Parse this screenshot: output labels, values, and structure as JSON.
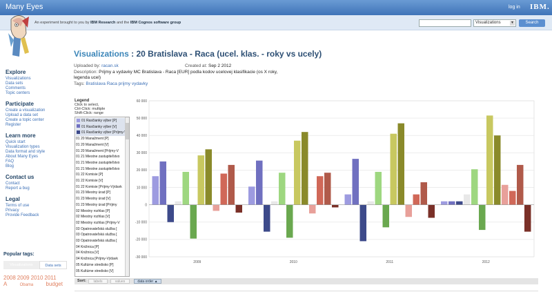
{
  "header": {
    "brand": "Many Eyes",
    "login": "log in",
    "ibm": "IBM.",
    "tagline_prefix": "An experiment brought to you by ",
    "tagline_research": "IBM Research",
    "tagline_mid": " and the ",
    "tagline_cognos": "IBM Cognos software group",
    "search_value": "",
    "search_select": "Visualizations",
    "search_button": "Search"
  },
  "sidebar": {
    "explore": {
      "heading": "Explore",
      "items": [
        "Visualizations",
        "Data sets",
        "Comments",
        "Topic centers"
      ]
    },
    "participate": {
      "heading": "Participate",
      "items": [
        "Create a visualization",
        "Upload a data set",
        "Create a topic center",
        "Register"
      ]
    },
    "learn": {
      "heading": "Learn more",
      "items": [
        "Quick start",
        "Visualization types",
        "Data format and style",
        "About Many Eyes",
        "FAQ",
        "Blog"
      ]
    },
    "contact": {
      "heading": "Contact us",
      "items": [
        "Contact",
        "Report a bug"
      ]
    },
    "legal": {
      "heading": "Legal",
      "items": [
        "Terms of use",
        "Privacy",
        "Provide Feedback"
      ]
    },
    "popular_tags": "Popular tags:",
    "tag_tabs": [
      "Visualizations",
      "Data sets"
    ],
    "tag_cloud": [
      "2008",
      "2009",
      "2010",
      "2011",
      "A",
      "Obama",
      "budget"
    ]
  },
  "page": {
    "title_link": "Visualizations",
    "title_rest": " : 20 Bratislava - Raca (ucel. klas. - roky vs ucely)",
    "uploaded_by_label": "Uploaded by:",
    "uploaded_by": "racan.sk",
    "created_label": "Created at:",
    "created": "Sep 2 2012",
    "description_label": "Description:",
    "description_1": "Prijmy a vydavky MC Bratislava - Raca [EUR] podla kodov ucelovej klasifikacie (os X roky,",
    "description_2": "legenda ucel)",
    "tags_label": "Tags:",
    "tags": "Bratislava Raca prijmy vydavky"
  },
  "legend": {
    "title": "Legend",
    "hint_1": "Click to select,",
    "hint_2": "Ctrl-Click: multiple",
    "hint_3": "Shift-Click: range",
    "items": [
      {
        "label": "01 Rasčianky výber [P]",
        "color": "#9d9be0",
        "selected": true
      },
      {
        "label": "01 Rasčianky výber [V]",
        "color": "#7070c0",
        "selected": true
      },
      {
        "label": "01 Rasčianky výber [Príjmy-V",
        "color": "#3d4a8a",
        "selected": true
      },
      {
        "label": "01 20 Manažment [P]",
        "color": "",
        "selected": false
      },
      {
        "label": "01 20 Manažment [V]",
        "color": "",
        "selected": false
      },
      {
        "label": "01 20 Manažment [Príjmy-V",
        "color": "",
        "selected": false
      },
      {
        "label": "01 21 Miestne zastupiteľstvo",
        "color": "",
        "selected": false
      },
      {
        "label": "01 21 Miestne zastupiteľstvo",
        "color": "",
        "selected": false
      },
      {
        "label": "01 21 Miestne zastupiteľstvo",
        "color": "",
        "selected": false
      },
      {
        "label": "01 22 Komisie [P]",
        "color": "",
        "selected": false
      },
      {
        "label": "01 22 Komisie [V]",
        "color": "",
        "selected": false
      },
      {
        "label": "01 22 Komisie [Príjmy-Výdavk",
        "color": "",
        "selected": false
      },
      {
        "label": "01 23 Miestny úrad [P]",
        "color": "",
        "selected": false
      },
      {
        "label": "01 23 Miestny úrad [V]",
        "color": "",
        "selected": false
      },
      {
        "label": "01 23 Miestny úrad [Príjmy",
        "color": "",
        "selected": false
      },
      {
        "label": "02 Miestny rozhlas [P]",
        "color": "",
        "selected": false
      },
      {
        "label": "02 Miestny rozhlas [V]",
        "color": "",
        "selected": false
      },
      {
        "label": "02 Miestny rozhlas [Príjmy-V",
        "color": "",
        "selected": false
      },
      {
        "label": "03 Opatrovateľská služba [",
        "color": "",
        "selected": false
      },
      {
        "label": "03 Opatrovateľská služba [",
        "color": "",
        "selected": false
      },
      {
        "label": "03 Opatrovateľská služba [",
        "color": "",
        "selected": false
      },
      {
        "label": "04 Knižnica [P]",
        "color": "",
        "selected": false
      },
      {
        "label": "04 Knižnica [V]",
        "color": "",
        "selected": false
      },
      {
        "label": "04 Knižnica [Príjmy-Výdavk",
        "color": "",
        "selected": false
      },
      {
        "label": "05 Kultúrne stredisko [P]",
        "color": "",
        "selected": false
      },
      {
        "label": "05 Kultúrne stredisko [V]",
        "color": "",
        "selected": false
      }
    ]
  },
  "footer": {
    "sort_label": "Sort:",
    "buttons": [
      "labels",
      "values",
      "data order"
    ],
    "active": 2
  },
  "chart_data": {
    "type": "bar",
    "title": "",
    "xlabel": "",
    "ylabel": "",
    "ylim": [
      -30000,
      60000
    ],
    "yticks": [
      -30000,
      -20000,
      -10000,
      0,
      10000,
      20000,
      30000,
      40000,
      50000,
      60000
    ],
    "ytick_labels": [
      "-30 000",
      "-20 000",
      "-10 000",
      "0",
      "10 000",
      "20 000",
      "30 000",
      "40 000",
      "50 000",
      "60 000"
    ],
    "grid": true,
    "categories": [
      "2009",
      "2010",
      "2011",
      "2012"
    ],
    "series": [
      {
        "color": "#9d9be0",
        "values": [
          16500,
          10500,
          6000,
          2000
        ]
      },
      {
        "color": "#7070c0",
        "values": [
          25000,
          25500,
          26500,
          2000
        ]
      },
      {
        "color": "#3d4a8a",
        "values": [
          -10000,
          -15500,
          -21000,
          2000
        ]
      },
      {
        "color": "#e8e8e8",
        "values": [
          2000,
          2000,
          2000,
          6000
        ]
      },
      {
        "color": "#9ed780",
        "values": [
          19000,
          18500,
          19000,
          20500
        ]
      },
      {
        "color": "#6aa84f",
        "values": [
          -19500,
          -19000,
          -13000,
          -14500
        ]
      },
      {
        "color": "#c8c860",
        "values": [
          28500,
          37000,
          41000,
          51500
        ]
      },
      {
        "color": "#8a8a2a",
        "values": [
          32000,
          42000,
          47000,
          40000
        ]
      },
      {
        "color": "#e8a09a",
        "values": [
          -3500,
          -5000,
          -7000,
          11500
        ]
      },
      {
        "color": "#d06858",
        "values": [
          18000,
          16500,
          6000,
          8000
        ]
      },
      {
        "color": "#b05a4a",
        "values": [
          23000,
          18500,
          13000,
          23000
        ]
      },
      {
        "color": "#7a3028",
        "values": [
          -4500,
          -1500,
          -7500,
          -15500
        ]
      }
    ]
  }
}
